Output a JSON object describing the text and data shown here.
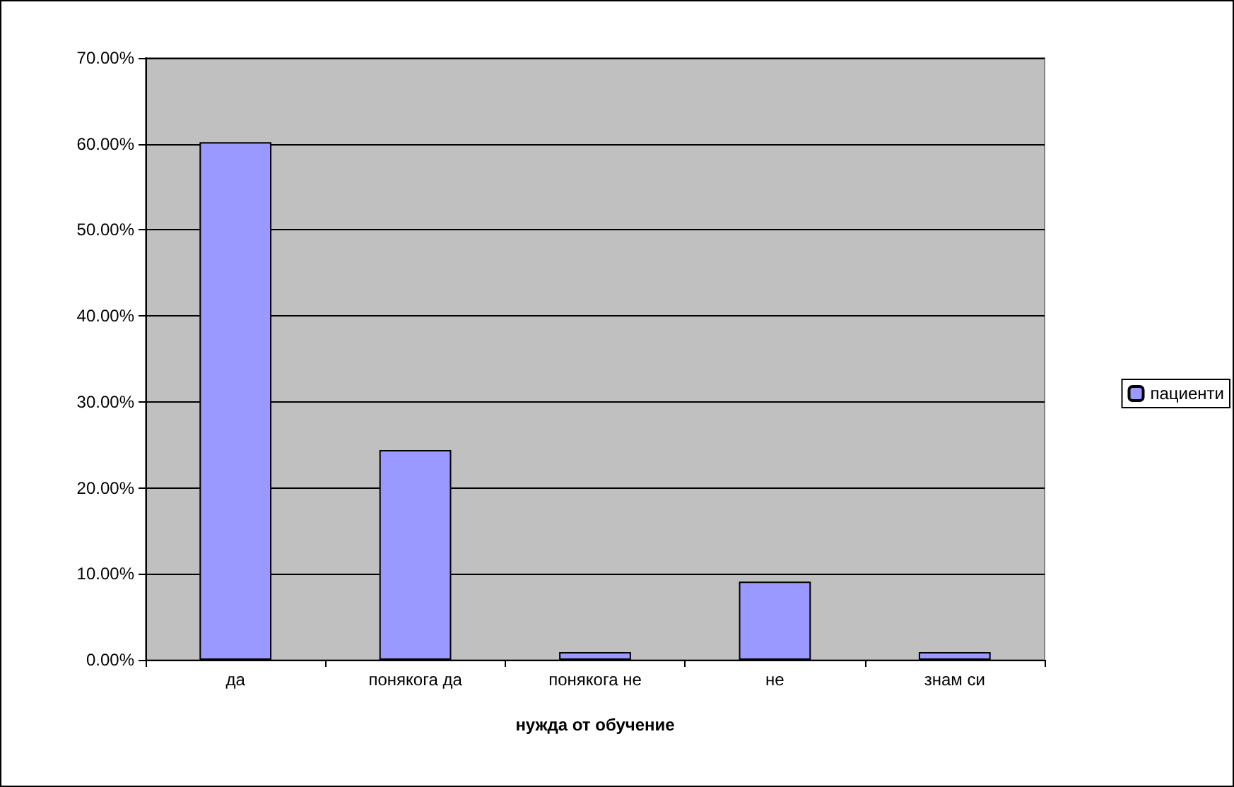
{
  "chart_data": {
    "type": "bar",
    "xlabel": "нужда от обучение",
    "categories": [
      "да",
      "понякога да",
      "понякога не",
      "не",
      "знам си"
    ],
    "series": [
      {
        "name": "пациенти",
        "color": "#9999ff",
        "values": [
          60.2,
          24.4,
          0.9,
          9.1,
          0.9
        ]
      }
    ],
    "ylim": [
      0,
      70
    ],
    "yticks": [
      {
        "value": 0,
        "label": "0.00%"
      },
      {
        "value": 10,
        "label": "10.00%"
      },
      {
        "value": 20,
        "label": "20.00%"
      },
      {
        "value": 30,
        "label": "30.00%"
      },
      {
        "value": 40,
        "label": "40.00%"
      },
      {
        "value": 50,
        "label": "50.00%"
      },
      {
        "value": 60,
        "label": "60.00%"
      },
      {
        "value": 70,
        "label": "70.00%"
      }
    ],
    "grid": "y",
    "legend": "right"
  }
}
